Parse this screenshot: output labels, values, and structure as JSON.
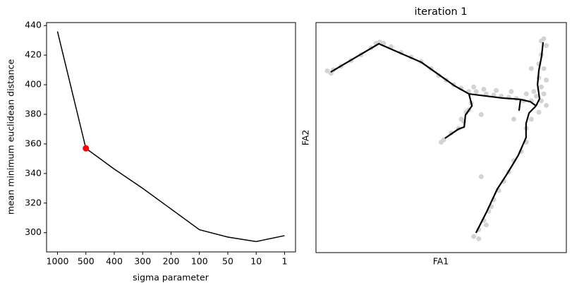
{
  "chart_data": [
    {
      "type": "line",
      "categories": [
        "1000",
        "500",
        "400",
        "300",
        "200",
        "100",
        "50",
        "10",
        "1"
      ],
      "values": [
        436,
        357,
        343,
        330,
        316,
        302,
        297,
        294,
        298
      ],
      "color": "#000000",
      "highlight_index": 1,
      "highlight_color": "#ff0000",
      "xlabel": "sigma parameter",
      "ylabel": "mean minimum euclidean distance",
      "ylim": [
        287,
        442
      ],
      "yticks": [
        300,
        320,
        340,
        360,
        380,
        400,
        420,
        440
      ]
    },
    {
      "type": "scatter",
      "title": "iteration 1",
      "xlabel": "FA1",
      "ylabel": "FA2",
      "xlim": [
        0,
        100
      ],
      "ylim": [
        0,
        100
      ],
      "points": {
        "color": "#d3d3d3",
        "x": [
          4.5,
          6,
          7,
          10,
          14,
          18,
          22,
          24,
          25.5,
          27,
          30,
          34,
          38,
          42,
          46,
          49,
          52,
          55,
          58,
          61,
          64,
          68,
          71,
          74,
          77,
          80,
          83,
          86,
          63,
          67,
          72,
          78,
          84,
          88,
          90,
          62,
          60,
          59,
          57,
          54,
          51,
          50,
          58,
          61,
          90,
          91,
          92,
          90,
          89,
          91,
          89,
          90,
          92,
          86,
          87,
          91,
          92,
          89,
          86,
          84,
          84,
          82,
          79,
          77,
          75,
          73,
          71,
          69,
          67,
          65,
          63,
          65,
          68,
          70,
          66,
          79,
          66
        ],
        "y": [
          79,
          78,
          79.5,
          81,
          83.5,
          86,
          89,
          91,
          91.5,
          91,
          89.5,
          87,
          85,
          83,
          80,
          77,
          75,
          73,
          71.5,
          70,
          70,
          69,
          68.5,
          68,
          67.5,
          67,
          66,
          66,
          72,
          71,
          70.5,
          70,
          69,
          68,
          66,
          65,
          61,
          57,
          54,
          52,
          49,
          48,
          58,
          62,
          92,
          93,
          90,
          86,
          82,
          80,
          76,
          72,
          75,
          80,
          70,
          69,
          64,
          61,
          58,
          54,
          48,
          44,
          40,
          35,
          31,
          27,
          23,
          18,
          14,
          10,
          7,
          6,
          12,
          20,
          33,
          58,
          60
        ]
      },
      "tree": {
        "color": "#000000",
        "branches": [
          {
            "x": [
              5.9,
              25.1,
              42.0,
              55.5,
              61.1,
              74.4,
              81.7,
              85.6,
              87.9
            ],
            "y": [
              78.5,
              90.8,
              82.8,
              72.4,
              69.0,
              67.2,
              66.6,
              65.6,
              63.8
            ]
          },
          {
            "x": [
              61.1,
              62.3,
              59.7,
              59.2,
              56.9,
              51.5
            ],
            "y": [
              69.0,
              63.8,
              59.8,
              54.6,
              53.7,
              49.7
            ]
          },
          {
            "x": [
              81.7,
              81.1
            ],
            "y": [
              66.6,
              61.7
            ]
          },
          {
            "x": [
              90.7,
              90.1,
              89.0,
              88.5,
              89.3,
              87.9
            ],
            "y": [
              91.4,
              85.3,
              79.1,
              73.0,
              66.9,
              63.8
            ]
          },
          {
            "x": [
              87.9,
              85.1,
              83.9,
              83.9,
              80.8,
              76.6,
              72.4,
              68.2,
              63.9
            ],
            "y": [
              63.8,
              60.7,
              56.1,
              50.0,
              42.3,
              34.7,
              27.6,
              17.8,
              8.6
            ]
          }
        ]
      }
    }
  ]
}
